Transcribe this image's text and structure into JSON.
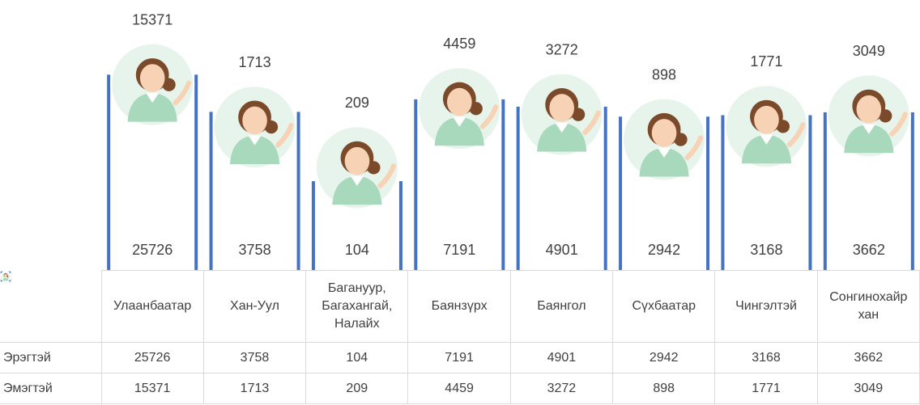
{
  "chart_data": {
    "type": "bar",
    "categories": [
      "Улаанбаатар",
      "Хан-Уул",
      "Багануур, Багахангай, Налайх",
      "Баянзүрх",
      "Баянгол",
      "Сүхбаатар",
      "Чингэлтэй",
      "Сонгинохайрхан"
    ],
    "series": [
      {
        "name": "Эрэгтэй",
        "color": "#4472c4",
        "values": [
          25726,
          3758,
          104,
          7191,
          4901,
          2942,
          3168,
          3662
        ]
      },
      {
        "name": "Эмэгтэй",
        "color": "#e6f4ec",
        "values": [
          15371,
          1713,
          209,
          4459,
          3272,
          898,
          1771,
          3049
        ]
      }
    ],
    "ylim": [
      1,
      100000
    ],
    "log_scale": true,
    "data_table": true
  }
}
